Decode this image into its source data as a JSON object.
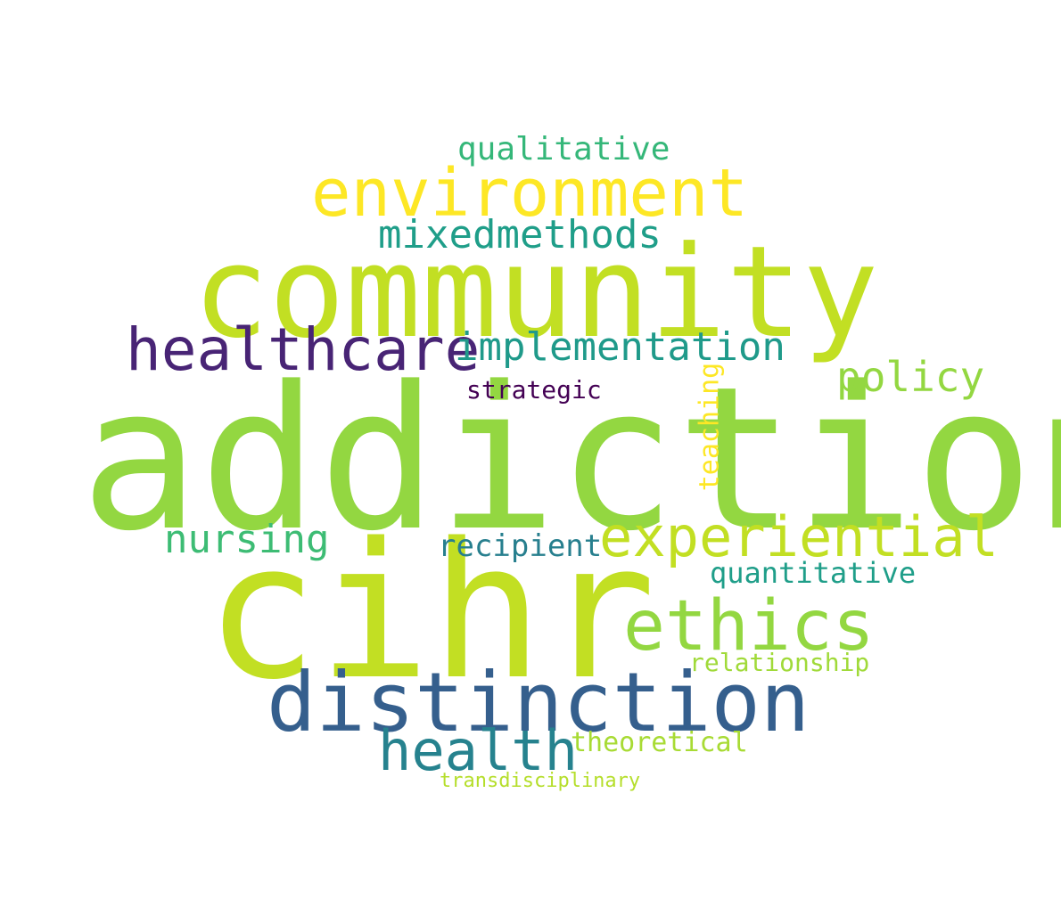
{
  "words": {
    "addiction": "addiction",
    "cihr": "cihr",
    "community": "community",
    "distinction": "distinction",
    "environment": "environment",
    "experiential": "experiential",
    "ethics": "ethics",
    "healthcare": "healthcare",
    "health": "health",
    "implementation": "implementation",
    "mixedmethods": "mixedmethods",
    "nursing": "nursing",
    "policy": "policy",
    "qualitative": "qualitative",
    "recipient": "recipient",
    "quantitative": "quantitative",
    "strategic": "strategic",
    "relationship": "relationship",
    "theoretical": "theoretical",
    "transdisciplinary": "transdisciplinary",
    "teaching": "teaching"
  },
  "colors": {
    "background": "#ffffff",
    "palette": [
      "#440154",
      "#482475",
      "#355f8d",
      "#26828e",
      "#1f9e89",
      "#35b779",
      "#93d741",
      "#c2df23",
      "#fde725"
    ]
  }
}
